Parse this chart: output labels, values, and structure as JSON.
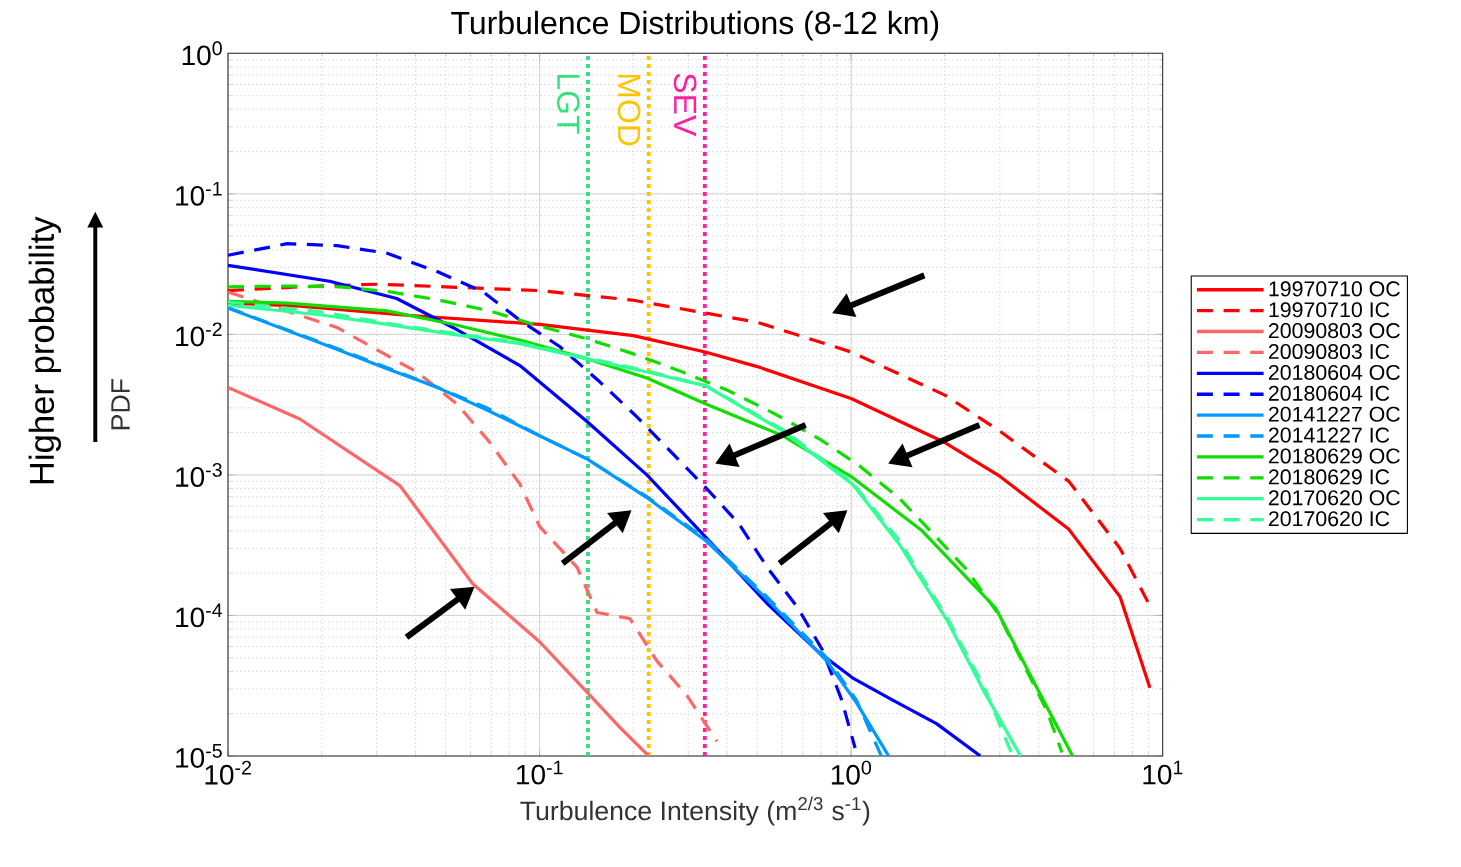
{
  "chart_data": {
    "type": "line",
    "title": "Turbulence Distributions (8-12 km)",
    "xlabel": "Turbulence Intensity (m$^{2/3}$ s$^{-1}$)",
    "ylabel": "PDF",
    "annotations": [
      "Higher probability"
    ],
    "xlim": [
      0.01,
      10
    ],
    "ylim": [
      1e-05,
      1
    ],
    "xticks": [
      {
        "value": 0.01,
        "label": "10$^{-2}$"
      },
      {
        "value": 0.1,
        "label": "10$^{-1}$"
      },
      {
        "value": 1,
        "label": "10$^{0}$"
      },
      {
        "value": 10,
        "label": "10$^{1}$"
      }
    ],
    "yticks": [
      {
        "value": 1e-05,
        "label": "10$^{-5}$"
      },
      {
        "value": 0.0001,
        "label": "10$^{-4}$"
      },
      {
        "value": 0.001,
        "label": "10$^{-3}$"
      },
      {
        "value": 0.01,
        "label": "10$^{-2}$"
      },
      {
        "value": 0.1,
        "label": "10$^{-1}$"
      },
      {
        "value": 1,
        "label": "10$^{0}$"
      }
    ],
    "log": "xy",
    "grid": true,
    "legend": "right",
    "series": [
      {
        "name": "19970710 OC",
        "color": "#ff0000",
        "line_style": "solid",
        "x": [
          0.01,
          0.017,
          0.0356,
          0.1,
          0.2,
          0.34,
          0.5,
          1,
          2,
          3,
          5,
          7.3,
          9.1
        ],
        "values": [
          0.0167,
          0.0159,
          0.0138,
          0.0118,
          0.0098,
          0.0075,
          0.0059,
          0.0035,
          0.0017,
          0.00098,
          0.00041,
          0.000136,
          3.06e-05
        ]
      },
      {
        "name": "19970710 IC",
        "color": "#ff0000",
        "line_style": "dashed",
        "x": [
          0.01,
          0.017,
          0.03,
          0.05,
          0.1,
          0.2,
          0.34,
          0.5,
          1,
          2,
          3,
          5,
          7.3,
          9.1
        ],
        "values": [
          0.0205,
          0.0218,
          0.0228,
          0.0218,
          0.0205,
          0.0175,
          0.0142,
          0.0122,
          0.0075,
          0.0037,
          0.00205,
          0.0009,
          0.0003,
          0.000117
        ]
      },
      {
        "name": "20090803 OC",
        "color": "#ff6666",
        "line_style": "solid",
        "x": [
          0.01,
          0.017,
          0.0356,
          0.061,
          0.1,
          0.143,
          0.181,
          0.224
        ],
        "values": [
          0.0042,
          0.0025,
          0.00084,
          0.000168,
          6.5e-05,
          2.8e-05,
          1.6e-05,
          1e-05
        ]
      },
      {
        "name": "20090803 IC",
        "color": "#ff6666",
        "line_style": "dashed",
        "x": [
          0.01,
          0.0224,
          0.03,
          0.0404,
          0.0543,
          0.0693,
          0.0865,
          0.1,
          0.132,
          0.153,
          0.195,
          0.238,
          0.297,
          0.371
        ],
        "values": [
          0.02,
          0.0112,
          0.0078,
          0.0054,
          0.0032,
          0.0017,
          0.00086,
          0.00043,
          0.00022,
          0.000105,
          9.5e-05,
          4.75e-05,
          2.7e-05,
          1.27e-05
        ]
      },
      {
        "name": "20180604 OC",
        "color": "#0000ff",
        "line_style": "solid",
        "x": [
          0.01,
          0.0212,
          0.0348,
          0.0527,
          0.0865,
          0.142,
          0.221,
          0.342,
          0.541,
          0.793,
          1.01,
          1.36,
          1.88,
          2.6
        ],
        "values": [
          0.031,
          0.0239,
          0.018,
          0.0112,
          0.006,
          0.0024,
          0.001,
          0.00036,
          0.00012,
          5.4e-05,
          3.6e-05,
          2.5e-05,
          1.7e-05,
          1e-05
        ]
      },
      {
        "name": "20180604 IC",
        "color": "#0000ff",
        "line_style": "dashed",
        "x": [
          0.01,
          0.0155,
          0.0224,
          0.0324,
          0.0469,
          0.0658,
          0.0865,
          0.116,
          0.156,
          0.205,
          0.342,
          0.436,
          0.541,
          0.675,
          0.81,
          0.933,
          1.03
        ],
        "values": [
          0.0366,
          0.0442,
          0.0428,
          0.0378,
          0.028,
          0.0201,
          0.0126,
          0.0082,
          0.0046,
          0.0026,
          0.00081,
          0.00045,
          0.000216,
          0.000113,
          5.65e-05,
          2.5e-05,
          1.14e-05
        ]
      },
      {
        "name": "20141227 OC",
        "color": "#0099ff",
        "line_style": "solid",
        "x": [
          0.01,
          0.0212,
          0.0324,
          0.0469,
          0.0678,
          0.1,
          0.142,
          0.221,
          0.342,
          0.529,
          0.835,
          1.04,
          1.32
        ],
        "values": [
          0.0154,
          0.0082,
          0.0057,
          0.0042,
          0.0029,
          0.0019,
          0.0013,
          0.00069,
          0.00034,
          0.000135,
          4.75e-05,
          2.4e-05,
          1e-05
        ]
      },
      {
        "name": "20141227 IC",
        "color": "#0099ff",
        "line_style": "dashed",
        "x": [
          0.01,
          0.0212,
          0.0324,
          0.0469,
          0.0678,
          0.1,
          0.142,
          0.221,
          0.342,
          0.529,
          0.835,
          1.04,
          1.25
        ],
        "values": [
          0.0155,
          0.0083,
          0.0058,
          0.0042,
          0.003,
          0.0019,
          0.0013,
          0.0007,
          0.00035,
          0.00014,
          5e-05,
          2.5e-05,
          1e-05
        ]
      },
      {
        "name": "20180629 OC",
        "color": "#11dd00",
        "line_style": "solid",
        "x": [
          0.01,
          0.0155,
          0.0324,
          0.0527,
          0.0865,
          0.142,
          0.221,
          0.342,
          0.604,
          1.01,
          1.69,
          2.91,
          4.03,
          5.14
        ],
        "values": [
          0.0172,
          0.0167,
          0.0147,
          0.0118,
          0.0091,
          0.0067,
          0.0049,
          0.0032,
          0.0019,
          0.00096,
          0.0004,
          0.000113,
          2.8e-05,
          1e-05
        ]
      },
      {
        "name": "20180629 IC",
        "color": "#11dd00",
        "line_style": "dashed",
        "x": [
          0.01,
          0.0155,
          0.0229,
          0.0331,
          0.0479,
          0.0693,
          0.098,
          0.142,
          0.199,
          0.282,
          0.402,
          0.573,
          0.793,
          1.07,
          1.43,
          1.88,
          2.33,
          2.98,
          4.25,
          4.75
        ],
        "values": [
          0.0218,
          0.0221,
          0.0218,
          0.0201,
          0.0175,
          0.0147,
          0.0116,
          0.0093,
          0.0073,
          0.0055,
          0.004,
          0.0027,
          0.0018,
          0.00115,
          0.00068,
          0.00036,
          0.000216,
          0.000101,
          2.1e-05,
          1.06e-05
        ]
      },
      {
        "name": "20170620 OC",
        "color": "#33ff99",
        "line_style": "solid",
        "x": [
          0.01,
          0.0197,
          0.0324,
          0.0527,
          0.0865,
          0.142,
          0.221,
          0.342,
          0.604,
          1.01,
          1.43,
          2.04,
          2.69,
          3.5
        ],
        "values": [
          0.0161,
          0.0138,
          0.0118,
          0.01,
          0.0086,
          0.0067,
          0.0054,
          0.0043,
          0.00205,
          0.00086,
          0.00032,
          9.1e-05,
          2.8e-05,
          1e-05
        ]
      },
      {
        "name": "20170620 IC",
        "color": "#33ff99",
        "line_style": "dashed",
        "x": [
          0.01,
          0.0197,
          0.0324,
          0.0527,
          0.0865,
          0.142,
          0.221,
          0.342,
          0.604,
          1.01,
          1.43,
          2.04,
          2.69,
          3.3
        ],
        "values": [
          0.017,
          0.0145,
          0.012,
          0.0102,
          0.0087,
          0.0068,
          0.0055,
          0.0043,
          0.0021,
          0.00088,
          0.00034,
          9.5e-05,
          3e-05,
          1e-05
        ]
      }
    ],
    "ref_lines": [
      {
        "axis": "x",
        "value": 0.143,
        "label": "LGT",
        "color": "#33e27a",
        "line_style": "dotted"
      },
      {
        "axis": "x",
        "value": 0.224,
        "label": "MOD",
        "color": "#ffc400",
        "line_style": "dotted"
      },
      {
        "axis": "x",
        "value": 0.339,
        "label": "SEV",
        "color": "#ff1fa0",
        "line_style": "dotted"
      }
    ]
  }
}
